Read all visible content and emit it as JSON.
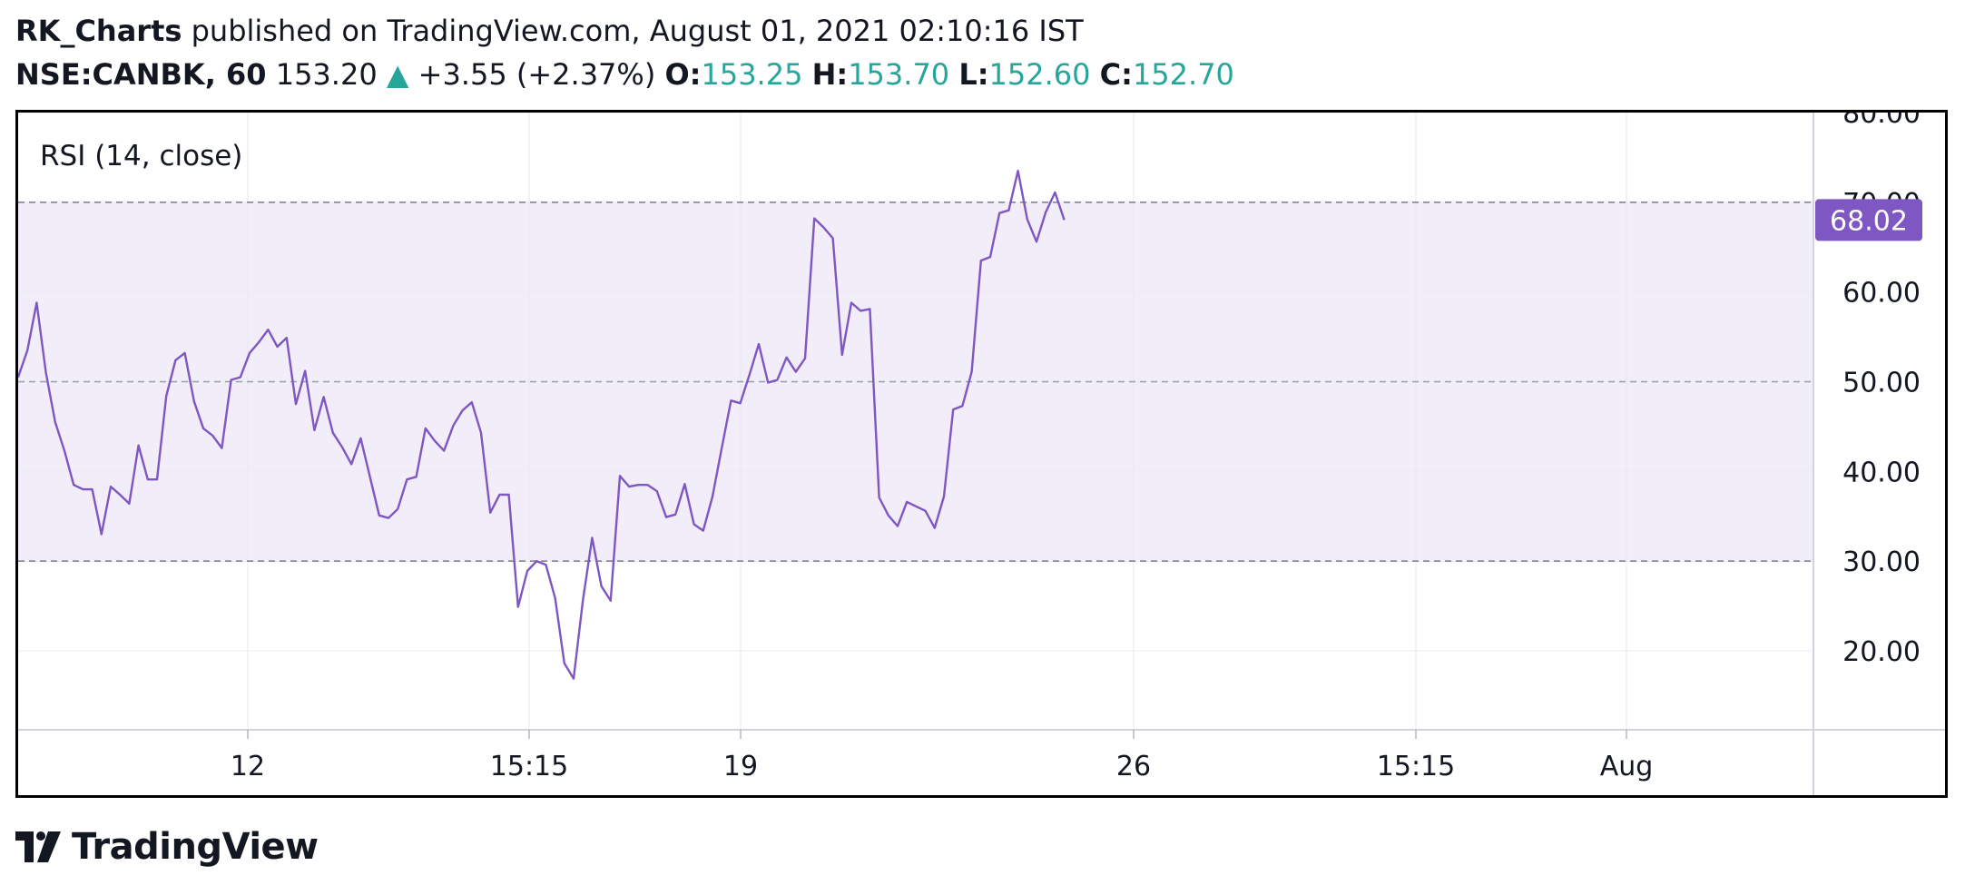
{
  "header": {
    "author": "RK_Charts",
    "published_text": "published on TradingView.com, August 01, 2021 02:10:16 IST",
    "symbol": "NSE:CANBK, 60",
    "price": "153.20",
    "change_arrow": "▲",
    "change": "+3.55 (+2.37%)",
    "ohlc": [
      {
        "label": "O:",
        "value": "153.25"
      },
      {
        "label": "H:",
        "value": "153.70"
      },
      {
        "label": "L:",
        "value": "152.60"
      },
      {
        "label": "C:",
        "value": "152.70"
      }
    ],
    "up_color": "#26a69a"
  },
  "footer": {
    "brand": "TradingView",
    "logo_icon": "tradingview-logo"
  },
  "chart_data": {
    "type": "line",
    "title": "RSI (14, close)",
    "line_color": "#7e57c2",
    "band_color": "#f1edf9",
    "ylim": [
      13,
      82
    ],
    "yticks": [
      "80.00",
      "70.00",
      "60.00",
      "50.00",
      "40.00",
      "30.00",
      "20.00"
    ],
    "bands": {
      "upper": 70,
      "middle": 50,
      "lower": 30
    },
    "last_value": "68.02",
    "last_value_color": "#7e57c2",
    "x_tick_labels": [
      "12",
      "15:15",
      "19",
      "26",
      "15:15",
      "Aug"
    ],
    "grid": true,
    "series": [
      {
        "values": [
          50.5,
          53.5,
          58.8,
          51,
          45.5,
          42.3,
          38.5,
          38,
          38,
          33,
          38.3,
          37.4,
          36.4,
          42.9,
          39.1,
          39.1,
          48.4,
          52.4,
          53.2,
          47.8,
          44.8,
          44,
          42.6,
          50.2,
          50.5,
          53.2,
          54.4,
          55.8,
          53.9,
          54.9,
          47.5,
          51.2,
          44.6,
          48.3,
          44.3,
          42.7,
          40.8,
          43.7,
          39.4,
          35.1,
          34.8,
          35.8,
          39.1,
          39.4,
          44.8,
          43.4,
          42.3,
          45.1,
          46.8,
          47.7,
          44.3,
          35.4,
          37.4,
          37.4,
          24.9,
          28.9,
          30,
          29.6,
          25.9,
          18.6,
          16.9,
          25.6,
          32.6,
          27.2,
          25.6,
          39.5,
          38.3,
          38.5,
          38.5,
          37.8,
          34.9,
          35.2,
          38.6,
          34.1,
          33.4,
          37.2,
          42.6,
          47.9,
          47.6,
          50.8,
          54.2,
          49.9,
          50.2,
          52.7,
          51.1,
          52.6,
          68.2,
          67.2,
          66,
          53,
          58.8,
          57.9,
          58.1,
          37.1,
          35.1,
          33.9,
          36.6,
          36.1,
          35.6,
          33.7,
          37.2,
          46.9,
          47.3,
          51.1,
          63.5,
          63.9,
          68.8,
          69.1,
          73.5,
          68.1,
          65.6,
          68.9,
          71.1,
          68.02
        ]
      }
    ]
  }
}
